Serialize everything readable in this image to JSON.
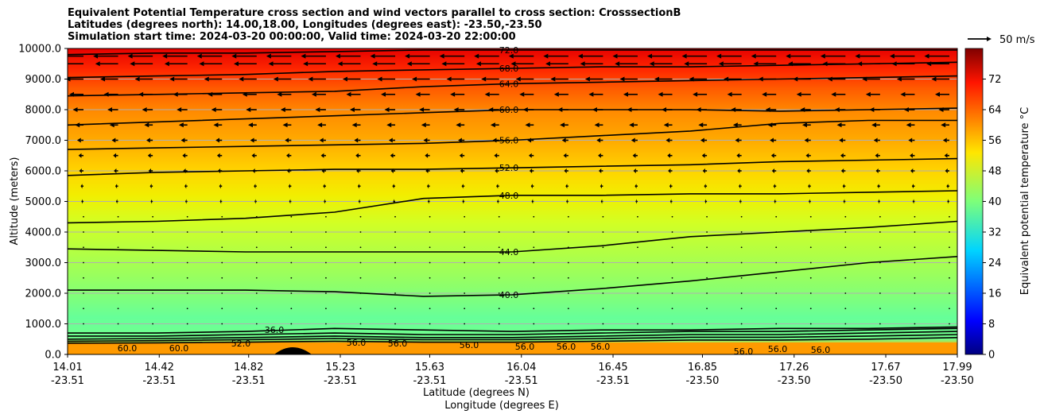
{
  "title_lines": [
    "Equivalent Potential Temperature cross section and wind vectors parallel to cross section: CrosssectionB",
    "Latitudes (degrees north): 14.00,18.00, Longitudes (degrees east): -23.50,-23.50",
    "Simulation start time: 2024-03-20 00:00:00, Valid time: 2024-03-20 22:00:00"
  ],
  "chart_data": {
    "type": "contour",
    "title": "Equivalent Potential Temperature cross section and wind vectors parallel to cross section: CrosssectionB",
    "ylabel": "Altitude (meters)",
    "xlabel": "Latitude (degrees N)",
    "xlabel2": "Longitude (degrees E)",
    "ylim": [
      0,
      10000
    ],
    "xlim": [
      14.01,
      17.99
    ],
    "yticks": [
      0,
      1000,
      2000,
      3000,
      4000,
      5000,
      6000,
      7000,
      8000,
      9000,
      10000
    ],
    "ytick_labels": [
      "0.0",
      "1000.0",
      "2000.0",
      "3000.0",
      "4000.0",
      "5000.0",
      "6000.0",
      "7000.0",
      "8000.0",
      "9000.0",
      "10000.0"
    ],
    "xticks": [
      14.01,
      14.42,
      14.82,
      15.23,
      15.63,
      16.04,
      16.45,
      16.85,
      17.26,
      17.67,
      17.99
    ],
    "xtick_labels_lat": [
      "14.01",
      "14.42",
      "14.82",
      "15.23",
      "15.63",
      "16.04",
      "16.45",
      "16.85",
      "17.26",
      "17.67",
      "17.99"
    ],
    "xtick_labels_lon": [
      "-23.51",
      "-23.51",
      "-23.51",
      "-23.51",
      "-23.51",
      "-23.51",
      "-23.51",
      "-23.50",
      "-23.50",
      "-23.50",
      "-23.50"
    ],
    "grid": true,
    "colorbar": {
      "label": "Equivalent potential temperature °C",
      "range": [
        0,
        80
      ],
      "ticks": [
        0,
        8,
        16,
        24,
        32,
        40,
        48,
        56,
        64,
        72
      ],
      "tick_labels": [
        "0",
        "8",
        "16",
        "24",
        "32",
        "40",
        "48",
        "56",
        "64",
        "72"
      ]
    },
    "quiver_key": "50 m/s",
    "contours": [
      {
        "level": 40.0,
        "label": "40.0",
        "alt": [
          2100,
          2100,
          2100,
          2050,
          1900,
          1950,
          2150,
          2400,
          2700,
          3000,
          3200
        ]
      },
      {
        "level": 44.0,
        "label": "44.0",
        "alt": [
          3450,
          3400,
          3350,
          3350,
          3350,
          3350,
          3550,
          3850,
          4000,
          4150,
          4350
        ]
      },
      {
        "level": 48.0,
        "label": "48.0",
        "alt": [
          4300,
          4350,
          4450,
          4650,
          5100,
          5200,
          5200,
          5250,
          5250,
          5300,
          5350
        ]
      },
      {
        "level": 52.0,
        "label": "52.0",
        "alt": [
          5850,
          5950,
          6000,
          6050,
          6050,
          6100,
          6150,
          6200,
          6300,
          6350,
          6400
        ]
      },
      {
        "level": 56.0,
        "label": "56.0",
        "alt": [
          6700,
          6750,
          6800,
          6850,
          6900,
          7000,
          7150,
          7300,
          7550,
          7650,
          7650
        ]
      },
      {
        "level": 60.0,
        "label": "60.0",
        "alt": [
          7500,
          7600,
          7700,
          7800,
          7900,
          8000,
          8000,
          8000,
          7950,
          8000,
          8050
        ]
      },
      {
        "level": 64.0,
        "label": "64.0",
        "alt": [
          8450,
          8500,
          8550,
          8600,
          8750,
          8850,
          8900,
          8950,
          9000,
          9050,
          9100
        ]
      },
      {
        "level": 68.0,
        "label": "68.0",
        "alt": [
          9050,
          9100,
          9150,
          9250,
          9300,
          9350,
          9400,
          9400,
          9450,
          9500,
          9550
        ]
      },
      {
        "level": 72.0,
        "label": "72.0",
        "alt": [
          9800,
          9850,
          9850,
          9900,
          9950,
          9950,
          9950,
          9950,
          9950,
          9950,
          9950
        ]
      },
      {
        "level": 36.0,
        "label": "36.0",
        "alt": [
          700,
          700,
          750,
          850,
          800,
          750,
          800,
          800,
          850,
          850,
          900
        ]
      },
      {
        "level": 40.0,
        "label": "40.0",
        "alt": [
          600,
          600,
          650,
          700,
          650,
          650,
          700,
          750,
          750,
          800,
          850
        ]
      },
      {
        "level": 44.0,
        "label": "44.0",
        "alt": [
          500,
          520,
          550,
          600,
          550,
          550,
          600,
          650,
          650,
          700,
          750
        ]
      },
      {
        "level": 48.0,
        "label": "48.0",
        "alt": [
          430,
          450,
          480,
          520,
          480,
          480,
          520,
          560,
          560,
          600,
          650
        ]
      },
      {
        "level": 52.0,
        "label": "52.0",
        "alt": [
          370,
          380,
          400,
          430,
          400,
          400,
          430,
          470,
          470,
          500,
          550
        ]
      }
    ],
    "extra_labels": [
      "60.0",
      "60.0",
      "56.0",
      "56.0",
      "56.0",
      "56.0",
      "56.0",
      "56.0",
      "56.0",
      "56.0",
      "56.0"
    ],
    "wind_u_by_altitude": [
      {
        "alt": 9750,
        "u": -35
      },
      {
        "alt": 9500,
        "u": -32
      },
      {
        "alt": 9000,
        "u": -25
      },
      {
        "alt": 8500,
        "u": -20
      },
      {
        "alt": 8000,
        "u": -15
      },
      {
        "alt": 7500,
        "u": -12
      },
      {
        "alt": 7000,
        "u": -9
      },
      {
        "alt": 6500,
        "u": -7
      },
      {
        "alt": 6000,
        "u": -6
      },
      {
        "alt": 5500,
        "u": -4
      },
      {
        "alt": 5000,
        "u": -3
      },
      {
        "alt": 4500,
        "u": -1
      },
      {
        "alt": 4000,
        "u": 0
      },
      {
        "alt": 3500,
        "u": 0
      },
      {
        "alt": 3000,
        "u": 0
      },
      {
        "alt": 2500,
        "u": 0
      },
      {
        "alt": 2000,
        "u": 0
      },
      {
        "alt": 1500,
        "u": 0
      },
      {
        "alt": 1000,
        "u": 0
      }
    ]
  }
}
